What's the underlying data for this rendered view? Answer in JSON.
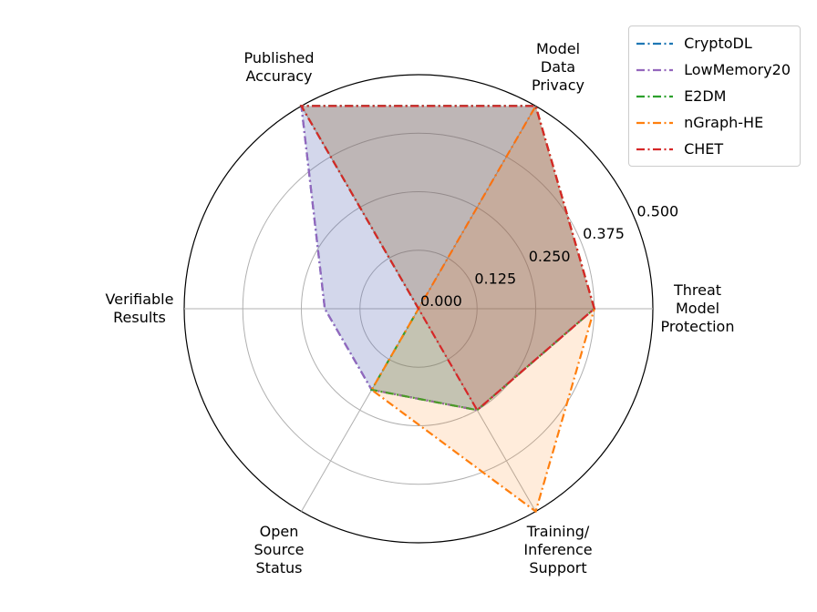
{
  "chart_data": {
    "type": "radar",
    "categories": [
      "Threat\nModel\nProtection",
      "Model\nData\nPrivacy",
      "Published\nAccuracy",
      "Verifiable\nResults",
      "Open\nSource\nStatus",
      "Training/\nInference\nSupport"
    ],
    "series": [
      {
        "name": "CryptoDL",
        "color": "#1f77b4",
        "values": [
          0.375,
          0.5,
          0.5,
          0.2,
          0.2,
          0.25
        ]
      },
      {
        "name": "LowMemory20",
        "color": "#9467bd",
        "values": [
          0.375,
          0.5,
          0.5,
          0.2,
          0.2,
          0.25
        ]
      },
      {
        "name": "E2DM",
        "color": "#2ca02c",
        "values": [
          0.375,
          0.5,
          0.5,
          0,
          0.2,
          0.25
        ]
      },
      {
        "name": "nGraph-HE",
        "color": "#ff7f0e",
        "values": [
          0.375,
          0.5,
          0,
          0,
          0.2,
          0.5
        ]
      },
      {
        "name": "CHET",
        "color": "#d62728",
        "values": [
          0.375,
          0.5,
          0.5,
          0,
          0,
          0.25
        ]
      }
    ],
    "rlim": [
      0,
      0.5
    ],
    "rticks": [
      {
        "value": 0,
        "label": "0.000"
      },
      {
        "value": 0.125,
        "label": "0.125"
      },
      {
        "value": 0.25,
        "label": "0.250"
      },
      {
        "value": 0.375,
        "label": "0.375"
      },
      {
        "value": 0.5,
        "label": "0.500"
      }
    ],
    "grid": true,
    "legend": "upper right"
  }
}
